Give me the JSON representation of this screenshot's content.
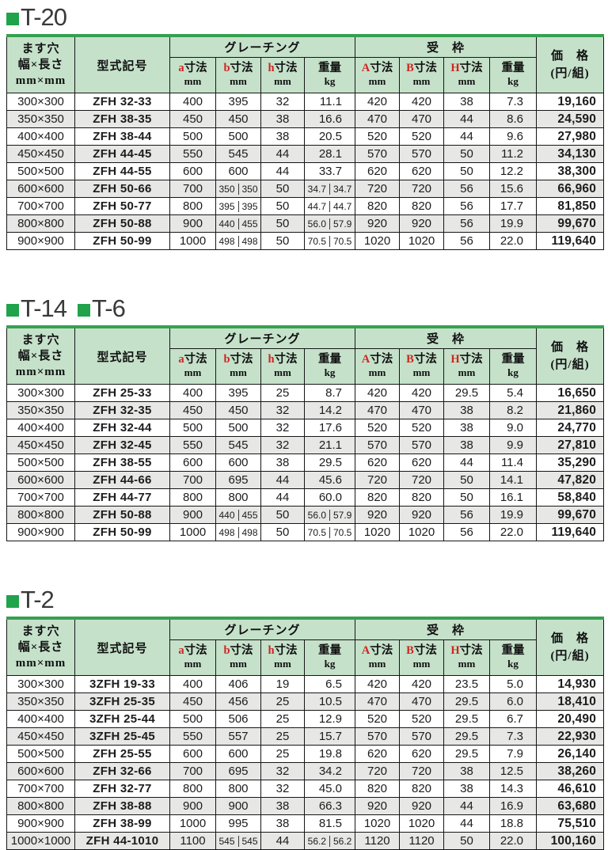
{
  "colors": {
    "header_bg": "#c5e1ca",
    "table_top_border_green": "#36a050",
    "title_bullet_green": "#20a34b",
    "alt_row_bg": "#e7e7e5",
    "red_dimension_letter": "#cf2420",
    "grid_line": "#161616"
  },
  "table_headers": {
    "hole_lines": [
      "ます穴",
      "幅×長さ",
      "mm×mm"
    ],
    "model": "型式記号",
    "grating_group": "グレーチング",
    "frame_group": "受　枠",
    "price_lines": [
      "価　格",
      "(円/組)"
    ],
    "sub_columns": [
      {
        "prefix": "a",
        "label": "寸法",
        "unit": "mm"
      },
      {
        "prefix": "b",
        "label": "寸法",
        "unit": "mm"
      },
      {
        "prefix": "h",
        "label": "寸法",
        "unit": "mm"
      },
      {
        "prefix": "",
        "label": "重量",
        "unit": "kg"
      },
      {
        "prefix": "A",
        "label": "寸法",
        "unit": "mm"
      },
      {
        "prefix": "B",
        "label": "寸法",
        "unit": "mm"
      },
      {
        "prefix": "H",
        "label": "寸法",
        "unit": "mm"
      },
      {
        "prefix": "",
        "label": "重量",
        "unit": "kg"
      }
    ]
  },
  "sections": [
    {
      "titles": [
        "T-20"
      ],
      "rows": [
        [
          "300×300",
          "ZFH 32-33",
          "400",
          "395",
          "32",
          "11.1",
          "420",
          "420",
          "38",
          "7.3",
          "19,160"
        ],
        [
          "350×350",
          "ZFH 38-35",
          "450",
          "450",
          "38",
          "16.6",
          "470",
          "470",
          "44",
          "8.6",
          "24,590"
        ],
        [
          "400×400",
          "ZFH 38-44",
          "500",
          "500",
          "38",
          "20.5",
          "520",
          "520",
          "44",
          "9.6",
          "27,980"
        ],
        [
          "450×450",
          "ZFH 44-45",
          "550",
          "545",
          "44",
          "28.1",
          "570",
          "570",
          "50",
          "11.2",
          "34,130"
        ],
        [
          "500×500",
          "ZFH 44-55",
          "600",
          "600",
          "44",
          "33.7",
          "620",
          "620",
          "50",
          "12.2",
          "38,300"
        ],
        [
          "600×600",
          "ZFH 50-66",
          "700",
          "350|350",
          "50",
          "34.7|34.7",
          "720",
          "720",
          "56",
          "15.6",
          "66,960"
        ],
        [
          "700×700",
          "ZFH 50-77",
          "800",
          "395|395",
          "50",
          "44.7|44.7",
          "820",
          "820",
          "56",
          "17.7",
          "81,850"
        ],
        [
          "800×800",
          "ZFH 50-88",
          "900",
          "440|455",
          "50",
          "56.0|57.9",
          "920",
          "920",
          "56",
          "19.9",
          "99,670"
        ],
        [
          "900×900",
          "ZFH 50-99",
          "1000",
          "498|498",
          "50",
          "70.5|70.5",
          "1020",
          "1020",
          "56",
          "22.0",
          "119,640"
        ]
      ]
    },
    {
      "titles": [
        "T-14",
        "T-6"
      ],
      "rows": [
        [
          "300×300",
          "ZFH 25-33",
          "400",
          "395",
          "25",
          "8.7",
          "420",
          "420",
          "29.5",
          "5.4",
          "16,650"
        ],
        [
          "350×350",
          "ZFH 32-35",
          "450",
          "450",
          "32",
          "14.2",
          "470",
          "470",
          "38",
          "8.2",
          "21,860"
        ],
        [
          "400×400",
          "ZFH 32-44",
          "500",
          "500",
          "32",
          "17.6",
          "520",
          "520",
          "38",
          "9.0",
          "24,770"
        ],
        [
          "450×450",
          "ZFH 32-45",
          "550",
          "545",
          "32",
          "21.1",
          "570",
          "570",
          "38",
          "9.9",
          "27,810"
        ],
        [
          "500×500",
          "ZFH 38-55",
          "600",
          "600",
          "38",
          "29.5",
          "620",
          "620",
          "44",
          "11.4",
          "35,290"
        ],
        [
          "600×600",
          "ZFH 44-66",
          "700",
          "695",
          "44",
          "45.6",
          "720",
          "720",
          "50",
          "14.1",
          "47,820"
        ],
        [
          "700×700",
          "ZFH 44-77",
          "800",
          "800",
          "44",
          "60.0",
          "820",
          "820",
          "50",
          "16.1",
          "58,840"
        ],
        [
          "800×800",
          "ZFH 50-88",
          "900",
          "440|455",
          "50",
          "56.0|57.9",
          "920",
          "920",
          "56",
          "19.9",
          "99,670"
        ],
        [
          "900×900",
          "ZFH 50-99",
          "1000",
          "498|498",
          "50",
          "70.5|70.5",
          "1020",
          "1020",
          "56",
          "22.0",
          "119,640"
        ]
      ]
    },
    {
      "titles": [
        "T-2"
      ],
      "rows": [
        [
          "300×300",
          "3ZFH 19-33",
          "400",
          "406",
          "19",
          "6.5",
          "420",
          "420",
          "23.5",
          "5.0",
          "14,930"
        ],
        [
          "350×350",
          "3ZFH 25-35",
          "450",
          "456",
          "25",
          "10.5",
          "470",
          "470",
          "29.5",
          "6.0",
          "18,410"
        ],
        [
          "400×400",
          "3ZFH 25-44",
          "500",
          "506",
          "25",
          "12.9",
          "520",
          "520",
          "29.5",
          "6.7",
          "20,490"
        ],
        [
          "450×450",
          "3ZFH 25-45",
          "550",
          "557",
          "25",
          "15.7",
          "570",
          "570",
          "29.5",
          "7.3",
          "22,930"
        ],
        [
          "500×500",
          "ZFH 25-55",
          "600",
          "600",
          "25",
          "19.8",
          "620",
          "620",
          "29.5",
          "7.9",
          "26,140"
        ],
        [
          "600×600",
          "ZFH 32-66",
          "700",
          "695",
          "32",
          "34.2",
          "720",
          "720",
          "38",
          "12.5",
          "38,260"
        ],
        [
          "700×700",
          "ZFH 32-77",
          "800",
          "800",
          "32",
          "45.0",
          "820",
          "820",
          "38",
          "14.3",
          "46,610"
        ],
        [
          "800×800",
          "ZFH 38-88",
          "900",
          "900",
          "38",
          "66.3",
          "920",
          "920",
          "44",
          "16.9",
          "63,680"
        ],
        [
          "900×900",
          "ZFH 38-99",
          "1000",
          "995",
          "38",
          "81.5",
          "1020",
          "1020",
          "44",
          "18.8",
          "75,510"
        ],
        [
          "1000×1000",
          "ZFH 44-1010",
          "1100",
          "545|545",
          "44",
          "56.2|56.2",
          "1120",
          "1120",
          "50",
          "22.0",
          "100,160"
        ]
      ]
    }
  ]
}
